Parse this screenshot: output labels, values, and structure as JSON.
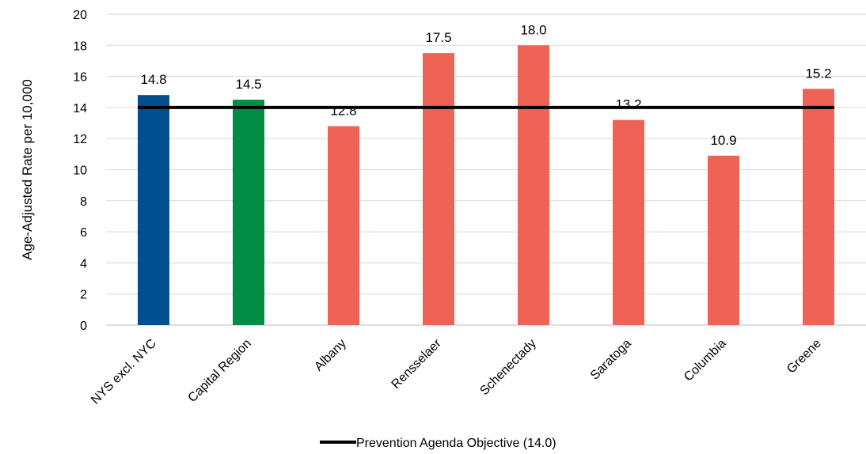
{
  "chart_data": {
    "type": "bar",
    "categories": [
      "NYS excl. NYC",
      "Capital Region",
      "Albany",
      "Rensselaer",
      "Schenectady",
      "Saratoga",
      "Columbia",
      "Greene"
    ],
    "values": [
      14.8,
      14.5,
      12.8,
      17.5,
      18.0,
      13.2,
      10.9,
      15.2
    ],
    "data_labels": [
      "14.8",
      "14.5",
      "12.8",
      "17.5",
      "18.0",
      "13.2",
      "10.9",
      "15.2"
    ],
    "bar_colors": [
      "#00508f",
      "#008c45",
      "#ef6256",
      "#ef6256",
      "#ef6256",
      "#ef6256",
      "#ef6256",
      "#ef6256"
    ],
    "ylabel": "Age-Adjusted Rate per 10,000",
    "xlabel": "",
    "ylim": [
      0,
      20
    ],
    "yticks": [
      0,
      2,
      4,
      6,
      8,
      10,
      12,
      14,
      16,
      18,
      20
    ],
    "grid": true,
    "reference_line": {
      "name": "Prevention Agenda Objective (14.0)",
      "value": 14.0,
      "color": "#000000"
    },
    "legend_position": "bottom"
  }
}
